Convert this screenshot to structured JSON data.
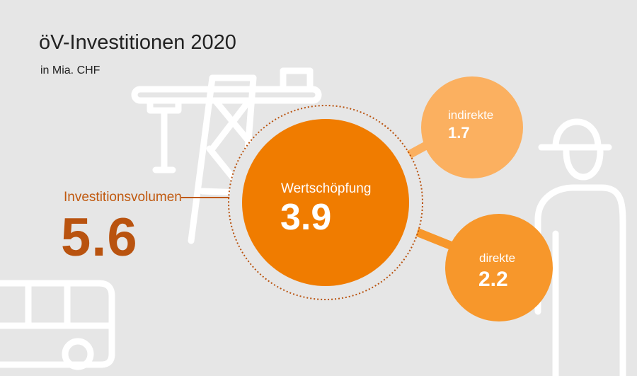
{
  "title": "öV-Investitionen 2020",
  "subtitle": "in Mia. CHF",
  "investment": {
    "label": "Investitionsvolumen",
    "value": "5.6"
  },
  "value_added": {
    "label": "Wertschöpfung",
    "value": "3.9"
  },
  "indirect": {
    "label": "indirekte",
    "value": "1.7"
  },
  "direct": {
    "label": "direkte",
    "value": "2.2"
  },
  "colors": {
    "background": "#e6e6e6",
    "main_circle": "#f07c00",
    "direct_circle": "#f7972b",
    "indirect_circle": "#fbb060",
    "volume_text": "#b9530f",
    "line_art": "#ffffff",
    "dotted_ring": "#b9530f"
  },
  "icons": [
    "crane-icon",
    "worker-icon",
    "bus-icon"
  ]
}
